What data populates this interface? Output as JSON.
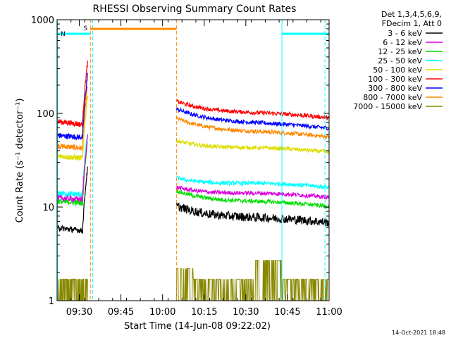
{
  "chart_data": {
    "type": "line",
    "title": "RHESSI Observing Summary Count Rates",
    "xlabel": "Start Time (14-Jun-08 09:22:02)",
    "ylabel": "Count Rate (s⁻¹ detector⁻¹)",
    "y_scale": "log",
    "ylim": [
      1,
      1000
    ],
    "xlim_minutes": [
      0,
      98
    ],
    "x_ticks": [
      {
        "label": "09:30",
        "t": 8
      },
      {
        "label": "09:45",
        "t": 23
      },
      {
        "label": "10:00",
        "t": 38
      },
      {
        "label": "10:15",
        "t": 53
      },
      {
        "label": "10:30",
        "t": 68
      },
      {
        "label": "10:45",
        "t": 83
      },
      {
        "label": "11:00",
        "t": 98
      }
    ],
    "y_ticks": [
      {
        "label": "1",
        "v": 1
      },
      {
        "label": "10",
        "v": 10
      },
      {
        "label": "100",
        "v": 100
      },
      {
        "label": "1000",
        "v": 1000
      }
    ],
    "legend": {
      "header": [
        "Det 1,3,4,5,6,9,",
        "FDecim 1, Att 0"
      ],
      "placement": "top-right outside"
    },
    "series": [
      {
        "name": "3 - 6 keV",
        "color": "#000000",
        "before": {
          "start": 6,
          "end": 5.5
        },
        "after": {
          "start": 11,
          "end": 6.7
        }
      },
      {
        "name": "6 - 12 keV",
        "color": "#dd00dd",
        "before": {
          "start": 12.5,
          "end": 12
        },
        "after": {
          "start": 17.5,
          "end": 12.5
        }
      },
      {
        "name": "12 - 25 keV",
        "color": "#00dd00",
        "before": {
          "start": 11.5,
          "end": 11
        },
        "after": {
          "start": 16,
          "end": 10
        }
      },
      {
        "name": "25 - 50 keV",
        "color": "#00ffff",
        "before": {
          "start": 14,
          "end": 13.5
        },
        "after": {
          "start": 22,
          "end": 16
        }
      },
      {
        "name": "50 - 100 keV",
        "color": "#dddd00",
        "before": {
          "start": 35,
          "end": 33
        },
        "after": {
          "start": 55,
          "end": 38
        }
      },
      {
        "name": "100 - 300 keV",
        "color": "#ff0000",
        "before": {
          "start": 82,
          "end": 75
        },
        "after": {
          "start": 145,
          "end": 88
        }
      },
      {
        "name": "300 - 800 keV",
        "color": "#0000ff",
        "before": {
          "start": 58,
          "end": 55
        },
        "after": {
          "start": 120,
          "end": 68
        }
      },
      {
        "name": "800 - 7000 keV",
        "color": "#ff8800",
        "before": {
          "start": 45,
          "end": 42
        },
        "after": {
          "start": 95,
          "end": 55
        }
      },
      {
        "name": "7000 - 15000 keV",
        "color": "#888800",
        "before": {
          "start": 1.7,
          "end": 1.7
        },
        "after": {
          "start": 2,
          "end": 1.7
        }
      }
    ],
    "segments": {
      "data_before_t": [
        0,
        11
      ],
      "data_after_t": [
        43,
        98
      ]
    },
    "flags": [
      {
        "label": "S",
        "color": "#ff8800",
        "t_start": 12,
        "t_end": 43
      },
      {
        "label": "N",
        "color": "#00ffff",
        "t_start": 0,
        "t_end": 12
      },
      {
        "label": "",
        "color": "#00ffff",
        "t_start": 81,
        "t_end": 98
      }
    ],
    "vlines": [
      {
        "t": 12,
        "color": "#ff8800",
        "style": "dashed"
      },
      {
        "t": 12.8,
        "color": "#00ffff",
        "style": "dashed"
      },
      {
        "t": 43,
        "color": "#ff8800",
        "style": "dashed"
      },
      {
        "t": 81,
        "color": "#00ffff",
        "style": "solid"
      },
      {
        "t": 96.5,
        "color": "#00ffff",
        "style": "dashed"
      }
    ],
    "footer_timestamp": "14-Oct-2021 18:48"
  }
}
